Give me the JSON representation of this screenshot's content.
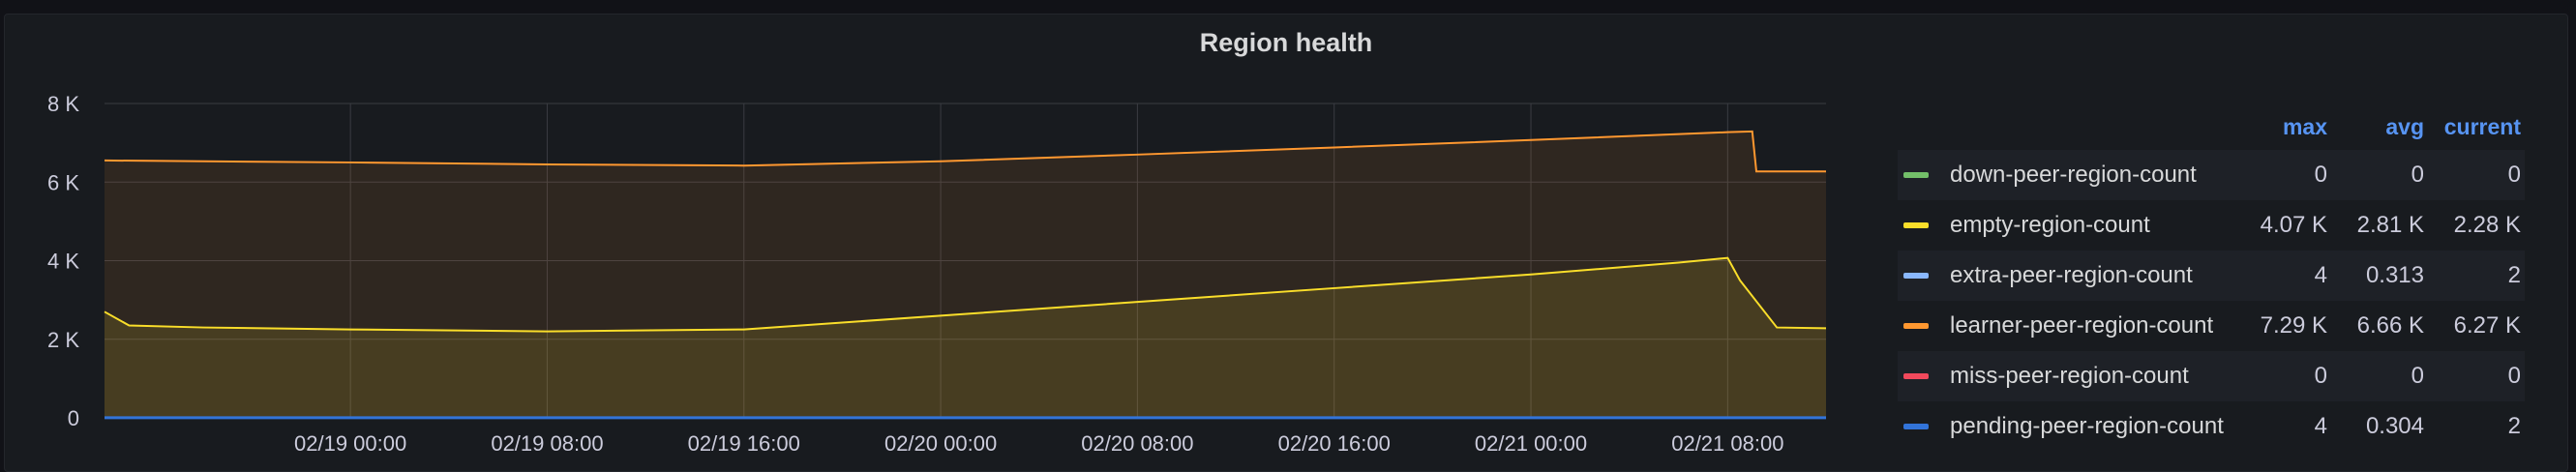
{
  "panel": {
    "title": "Region health"
  },
  "chart_data": {
    "type": "line",
    "title": "Region health",
    "xlim": [
      "2025-02-18 14:00",
      "2025-02-21 12:00"
    ],
    "ylim": [
      0,
      8000
    ],
    "y_ticks": [
      0,
      2000,
      4000,
      6000,
      8000
    ],
    "y_tick_labels": [
      "0",
      "2 K",
      "4 K",
      "6 K",
      "8 K"
    ],
    "x_ticks": [
      "2025-02-19 00:00",
      "2025-02-19 08:00",
      "2025-02-19 16:00",
      "2025-02-20 00:00",
      "2025-02-20 08:00",
      "2025-02-20 16:00",
      "2025-02-21 00:00",
      "2025-02-21 08:00"
    ],
    "x_tick_labels": [
      "02/19 00:00",
      "02/19 08:00",
      "02/19 16:00",
      "02/20 00:00",
      "02/20 08:00",
      "02/20 16:00",
      "02/21 00:00",
      "02/21 08:00"
    ],
    "grid": true,
    "legend_position": "right",
    "legend_columns": [
      "max",
      "avg",
      "current"
    ],
    "series": [
      {
        "name": "down-peer-region-count",
        "color": "#73bf69",
        "stats": {
          "max": "0",
          "avg": "0",
          "current": "0"
        },
        "x": [
          "2025-02-18 14:00",
          "2025-02-21 12:00"
        ],
        "y": [
          0,
          0
        ]
      },
      {
        "name": "empty-region-count",
        "color": "#fade2a",
        "stats": {
          "max": "4.07 K",
          "avg": "2.81 K",
          "current": "2.28 K"
        },
        "x": [
          "2025-02-18 14:00",
          "2025-02-18 15:00",
          "2025-02-18 18:00",
          "2025-02-19 00:00",
          "2025-02-19 08:00",
          "2025-02-19 16:00",
          "2025-02-20 00:00",
          "2025-02-20 08:00",
          "2025-02-20 16:00",
          "2025-02-21 00:00",
          "2025-02-21 06:00",
          "2025-02-21 08:00",
          "2025-02-21 08:30",
          "2025-02-21 10:00",
          "2025-02-21 12:00"
        ],
        "y": [
          2700,
          2350,
          2300,
          2250,
          2200,
          2250,
          2600,
          2950,
          3300,
          3650,
          3950,
          4070,
          3500,
          2300,
          2280
        ]
      },
      {
        "name": "extra-peer-region-count",
        "color": "#8ab8ff",
        "stats": {
          "max": "4",
          "avg": "0.313",
          "current": "2"
        },
        "x": [
          "2025-02-18 14:00",
          "2025-02-21 12:00"
        ],
        "y": [
          2,
          2
        ]
      },
      {
        "name": "learner-peer-region-count",
        "color": "#ff9830",
        "stats": {
          "max": "7.29 K",
          "avg": "6.66 K",
          "current": "6.27 K"
        },
        "x": [
          "2025-02-18 14:00",
          "2025-02-19 00:00",
          "2025-02-19 08:00",
          "2025-02-19 16:00",
          "2025-02-20 00:00",
          "2025-02-20 08:00",
          "2025-02-20 16:00",
          "2025-02-21 00:00",
          "2025-02-21 08:00",
          "2025-02-21 09:00",
          "2025-02-21 09:10",
          "2025-02-21 12:00"
        ],
        "y": [
          6550,
          6500,
          6450,
          6420,
          6530,
          6700,
          6880,
          7070,
          7270,
          7290,
          6270,
          6270
        ]
      },
      {
        "name": "miss-peer-region-count",
        "color": "#f2495c",
        "stats": {
          "max": "0",
          "avg": "0",
          "current": "0"
        },
        "x": [
          "2025-02-18 14:00",
          "2025-02-21 12:00"
        ],
        "y": [
          0,
          0
        ]
      },
      {
        "name": "pending-peer-region-count",
        "color": "#3274d9",
        "stats": {
          "max": "4",
          "avg": "0.304",
          "current": "2"
        },
        "x": [
          "2025-02-18 14:00",
          "2025-02-21 12:00"
        ],
        "y": [
          2,
          2
        ]
      }
    ]
  }
}
